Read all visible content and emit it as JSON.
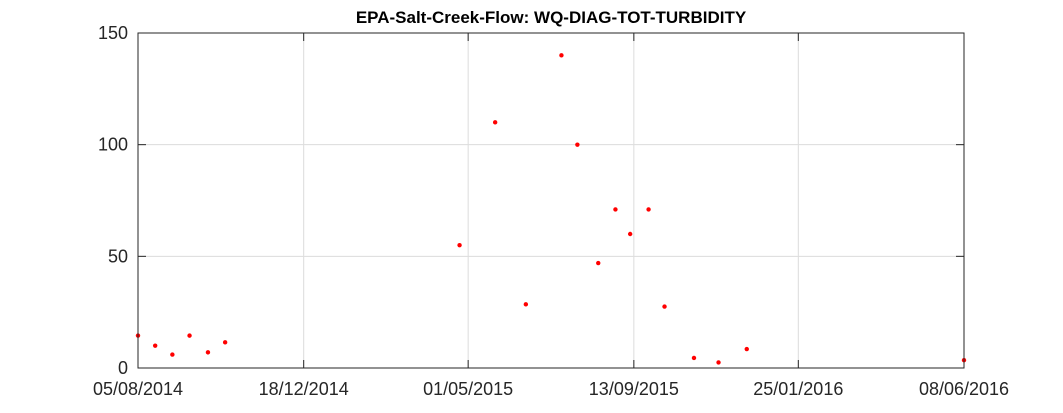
{
  "chart_data": {
    "type": "scatter",
    "title": "EPA-Salt-Creek-Flow: WQ-DIAG-TOT-TURBIDITY",
    "xlabel": "",
    "ylabel": "",
    "x_axis_type": "date",
    "xlim": [
      "2014-08-05",
      "2016-06-08"
    ],
    "ylim": [
      0,
      150
    ],
    "x_ticks": [
      "05/08/2014",
      "18/12/2014",
      "01/05/2015",
      "13/09/2015",
      "25/01/2016",
      "08/06/2016"
    ],
    "x_tick_dates": [
      "2014-08-05",
      "2014-12-18",
      "2015-05-01",
      "2015-09-13",
      "2016-01-25",
      "2016-06-08"
    ],
    "y_ticks": [
      "0",
      "50",
      "100",
      "150"
    ],
    "y_tick_values": [
      0,
      50,
      100,
      150
    ],
    "grid": true,
    "box": true,
    "marker_color": "#ff0000",
    "series": [
      {
        "points": [
          {
            "x": "2014-08-05",
            "y": 14.5
          },
          {
            "x": "2014-08-19",
            "y": 10
          },
          {
            "x": "2014-09-02",
            "y": 6
          },
          {
            "x": "2014-09-16",
            "y": 14.5
          },
          {
            "x": "2014-10-01",
            "y": 7
          },
          {
            "x": "2014-10-15",
            "y": 11.5
          },
          {
            "x": "2015-04-24",
            "y": 55
          },
          {
            "x": "2015-05-23",
            "y": 110
          },
          {
            "x": "2015-06-17",
            "y": 28.5
          },
          {
            "x": "2015-07-16",
            "y": 140
          },
          {
            "x": "2015-07-29",
            "y": 100
          },
          {
            "x": "2015-08-15",
            "y": 47
          },
          {
            "x": "2015-08-29",
            "y": 71
          },
          {
            "x": "2015-09-10",
            "y": 60
          },
          {
            "x": "2015-09-25",
            "y": 71
          },
          {
            "x": "2015-10-08",
            "y": 27.5
          },
          {
            "x": "2015-11-01",
            "y": 4.5
          },
          {
            "x": "2015-11-21",
            "y": 2.5
          },
          {
            "x": "2015-12-14",
            "y": 8.5
          },
          {
            "x": "2016-06-08",
            "y": 3.5
          }
        ]
      }
    ]
  }
}
